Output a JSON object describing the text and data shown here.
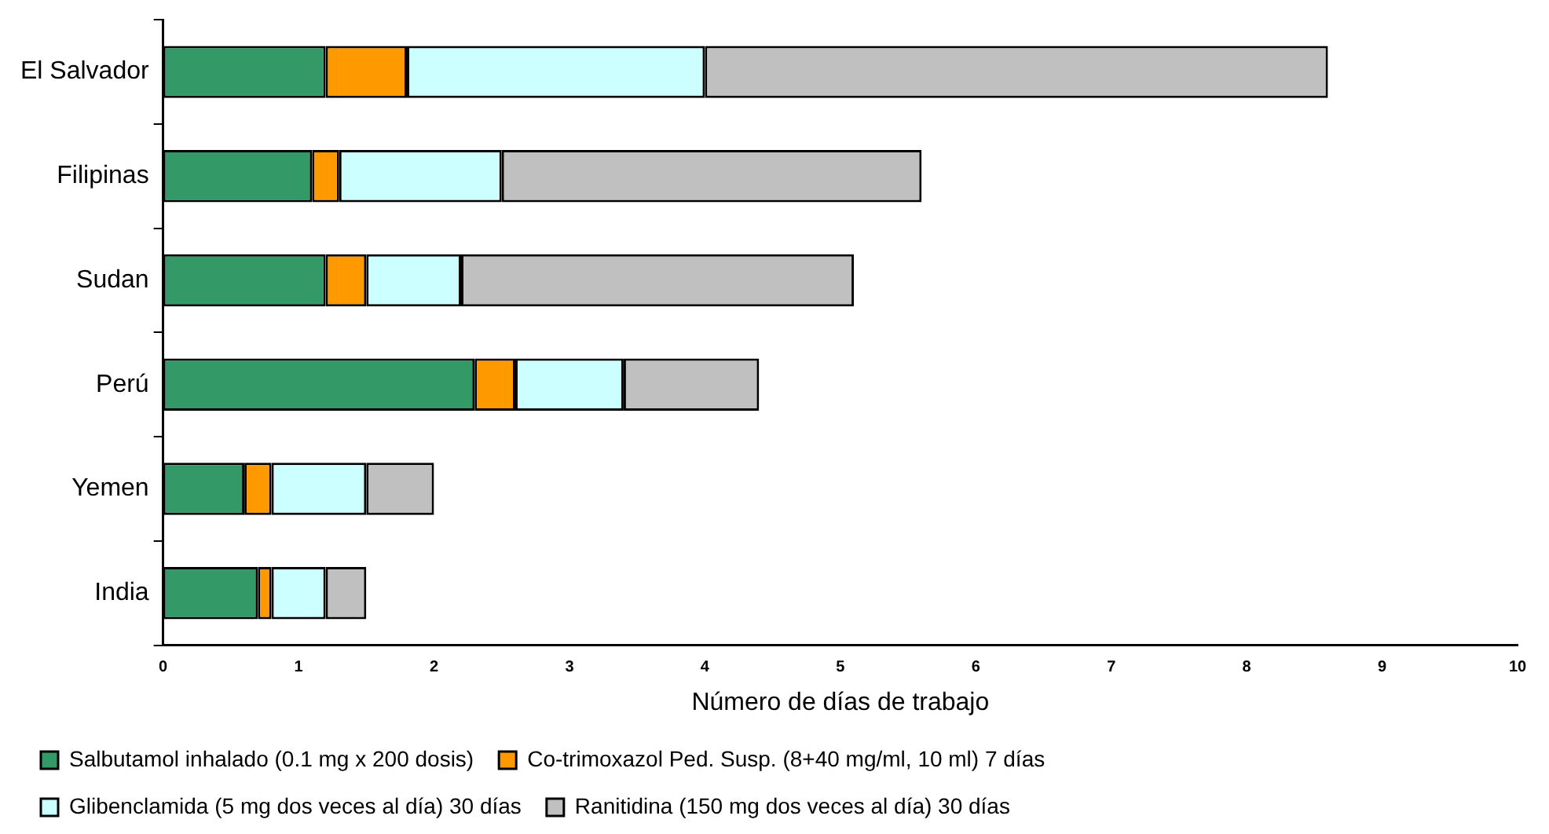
{
  "chart_data": {
    "type": "bar",
    "orientation": "horizontal",
    "stacked": true,
    "xlabel": "Número de días de trabajo",
    "categories": [
      "El Salvador",
      "Filipinas",
      "Sudan",
      "Perú",
      "Yemen",
      "India"
    ],
    "series": [
      {
        "name": "Salbutamol inhalado (0.1 mg x 200 dosis)",
        "color": "#339966",
        "values": [
          1.2,
          1.1,
          1.2,
          2.3,
          0.6,
          0.7
        ]
      },
      {
        "name": "Co-trimoxazol Ped. Susp. (8+40 mg/ml, 10 ml) 7 días",
        "color": "#ff9900",
        "values": [
          0.6,
          0.2,
          0.3,
          0.3,
          0.2,
          0.1
        ]
      },
      {
        "name": "Glibenclamida (5 mg dos veces al día) 30 días",
        "color": "#ccffff",
        "values": [
          2.2,
          1.2,
          0.7,
          0.8,
          0.7,
          0.4
        ]
      },
      {
        "name": "Ranitidina (150 mg dos veces al día) 30 días",
        "color": "#c0c0c0",
        "values": [
          4.6,
          3.1,
          2.9,
          1.0,
          0.5,
          0.3
        ]
      }
    ],
    "xlim": [
      0,
      10
    ],
    "xticks": [
      0,
      1,
      2,
      3,
      4,
      5,
      6,
      7,
      8,
      9,
      10
    ],
    "grid": false,
    "legend": "bottom"
  }
}
